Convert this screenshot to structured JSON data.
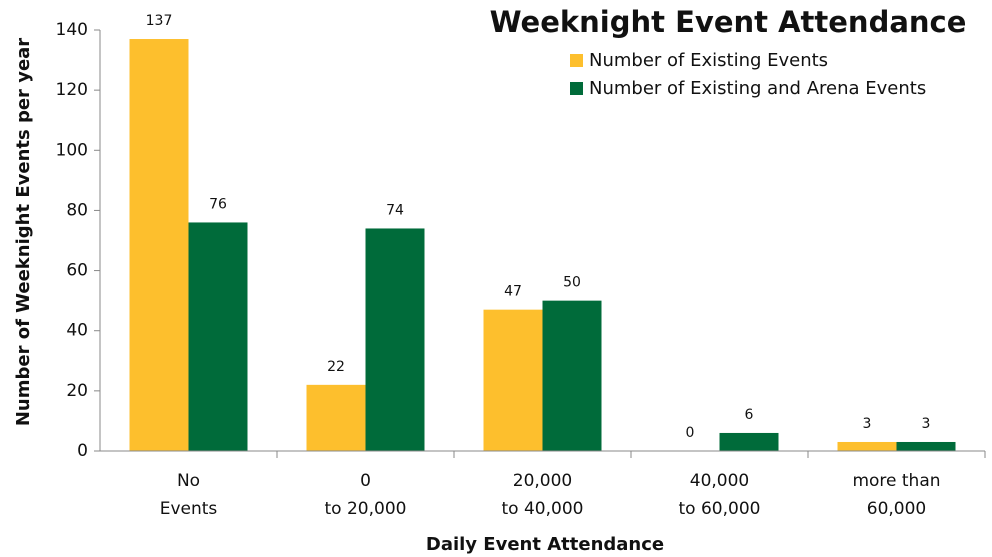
{
  "chart_data": {
    "type": "bar",
    "title": "Weeknight Event Attendance",
    "x_label": "Daily Event Attendance",
    "y_label": "Number of Weeknight Events per year",
    "categories": [
      [
        "No",
        "Events"
      ],
      [
        "0",
        "to 20,000"
      ],
      [
        "20,000",
        "to 40,000"
      ],
      [
        "40,000",
        "to 60,000"
      ],
      [
        "more than",
        "60,000"
      ]
    ],
    "series": [
      {
        "name": "Number of Existing Events",
        "color": "#fdbf2d",
        "values": [
          137,
          22,
          47,
          0,
          3
        ]
      },
      {
        "name": "Number of Existing and Arena Events",
        "color": "#006b3a",
        "values": [
          76,
          74,
          50,
          6,
          3
        ]
      }
    ],
    "ylim": [
      0,
      140
    ],
    "yticks": [
      0,
      20,
      40,
      60,
      80,
      100,
      120,
      140
    ],
    "grid": false,
    "legend": "upper right"
  }
}
